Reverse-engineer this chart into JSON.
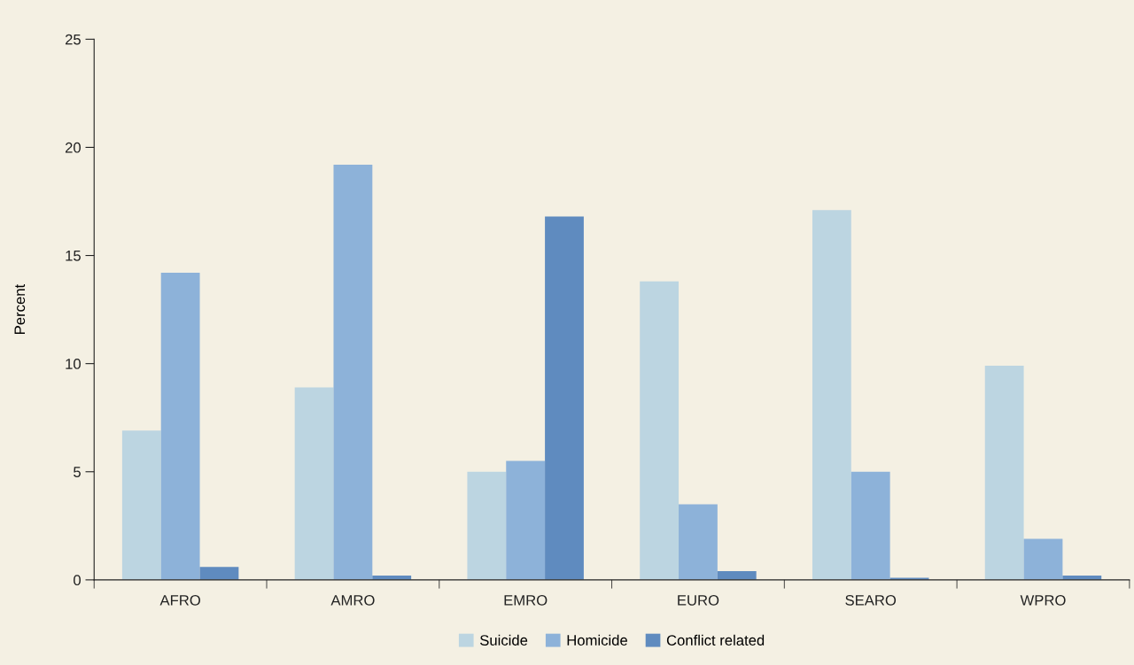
{
  "chart_data": {
    "type": "bar",
    "ylabel": "Percent",
    "categories": [
      "AFRO",
      "AMRO",
      "EMRO",
      "EURO",
      "SEARO",
      "WPRO"
    ],
    "series": [
      {
        "name": "Suicide",
        "color": "#bcd5e1",
        "values": [
          6.9,
          8.9,
          5.0,
          13.8,
          17.1,
          9.9
        ]
      },
      {
        "name": "Homicide",
        "color": "#8db2d9",
        "values": [
          14.2,
          19.2,
          5.5,
          3.5,
          5.0,
          1.9
        ]
      },
      {
        "name": "Conflict related",
        "color": "#5f8bbf",
        "values": [
          0.6,
          0.2,
          16.8,
          0.4,
          0.1,
          0.2
        ]
      }
    ],
    "ylim": [
      0,
      25
    ],
    "yticks": [
      0,
      5,
      10,
      15,
      20,
      25
    ],
    "grid": false,
    "legend": "bottom"
  }
}
